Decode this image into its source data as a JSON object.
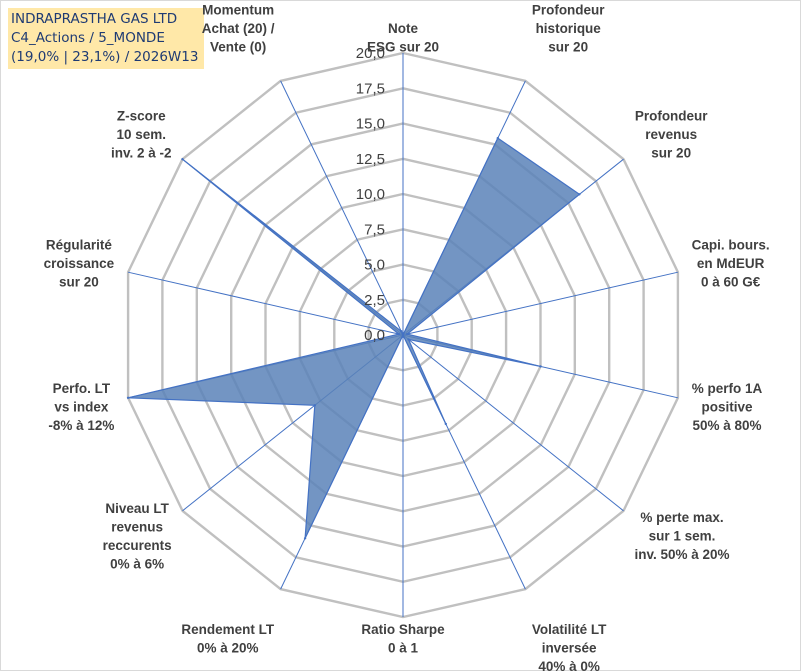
{
  "header": {
    "line1": "INDRAPRASTHA GAS LTD",
    "line2": "C4_Actions / 5_MONDE",
    "line3": "(19,0% | 23,1%) / 2026W13"
  },
  "chart_data": {
    "type": "radar",
    "title": "INDRAPRASTHA GAS LTD",
    "rmin": 0,
    "rmax": 20,
    "tick_step": 2.5,
    "tick_labels": [
      "0,0",
      "2,5",
      "5,0",
      "7,5",
      "10,0",
      "12,5",
      "15,0",
      "17,5",
      "20,0"
    ],
    "colors": {
      "fill": "#5a82b8",
      "line": "#4472c4",
      "grid": "#c0c0c0",
      "text": "#404040"
    },
    "axes": [
      {
        "label": [
          "Note",
          "ESG sur 20"
        ],
        "value": 0
      },
      {
        "label": [
          "Profondeur",
          "historique",
          "sur 20"
        ],
        "value": 15.5
      },
      {
        "label": [
          "Profondeur",
          "revenus",
          "sur 20"
        ],
        "value": 16.0
      },
      {
        "label": [
          "Capi. bours.",
          "en MdEUR",
          "0 à 60 G€"
        ],
        "value": 0.3
      },
      {
        "label": [
          "% perfo 1A",
          "positive",
          "50% à 80%"
        ],
        "value": 10.0
      },
      {
        "label": [
          "% perte max.",
          "sur 1 sem.",
          "inv. 50% à 20%"
        ],
        "value": 0.5
      },
      {
        "label": [
          "Volatilité LT",
          "inversée",
          "40% à 0%"
        ],
        "value": 7.0
      },
      {
        "label": [
          "Ratio Sharpe",
          "0 à 1"
        ],
        "value": 0.0
      },
      {
        "label": [
          "Rendement LT",
          "0% à 20%"
        ],
        "value": 16.0
      },
      {
        "label": [
          "Niveau LT",
          "revenus",
          "reccurents",
          "0% à 6%"
        ],
        "value": 8.0
      },
      {
        "label": [
          "Perfo. LT",
          "vs index",
          "-8% à 12%"
        ],
        "value": 20.0
      },
      {
        "label": [
          "Régularité",
          "croissance",
          "sur 20"
        ],
        "value": 0.3
      },
      {
        "label": [
          "Z-score",
          "10 sem.",
          "inv. 2 à -2"
        ],
        "value": 20.0
      },
      {
        "label": [
          "Momentum",
          "Achat (20) /",
          "Vente (0)"
        ],
        "value": 0.3
      }
    ]
  }
}
